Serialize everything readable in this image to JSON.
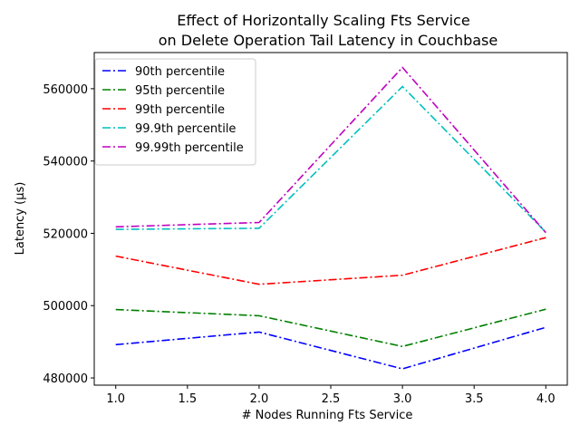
{
  "chart_data": {
    "type": "line",
    "title": [
      "Effect of Horizontally Scaling Fts Service",
      "on Delete Operation Tail Latency in Couchbase"
    ],
    "xlabel": "# Nodes Running Fts Service",
    "ylabel": "Latency (µs)",
    "xlim": [
      0.85,
      4.15
    ],
    "ylim": [
      478000,
      570000
    ],
    "xticks": [
      1.0,
      1.5,
      2.0,
      2.5,
      3.0,
      3.5,
      4.0
    ],
    "xtick_labels": [
      "1.0",
      "1.5",
      "2.0",
      "2.5",
      "3.0",
      "3.5",
      "4.0"
    ],
    "yticks": [
      480000,
      500000,
      520000,
      540000,
      560000
    ],
    "ytick_labels": [
      "480000",
      "500000",
      "520000",
      "540000",
      "560000"
    ],
    "grid": false,
    "legend_position": "upper-left",
    "x": [
      1,
      2,
      3,
      4
    ],
    "series": [
      {
        "name": "90th percentile",
        "color": "#0000ff",
        "values": [
          489200,
          492700,
          482500,
          494000
        ]
      },
      {
        "name": "95th percentile",
        "color": "#008000",
        "values": [
          498900,
          497200,
          488700,
          499000
        ]
      },
      {
        "name": "99th percentile",
        "color": "#ff0000",
        "values": [
          513700,
          505900,
          508400,
          518800
        ]
      },
      {
        "name": "99.9th percentile",
        "color": "#00bfbf",
        "values": [
          521100,
          521400,
          560600,
          520300
        ]
      },
      {
        "name": "99.99th percentile",
        "color": "#bf00bf",
        "values": [
          521800,
          523000,
          565900,
          520200
        ]
      }
    ]
  }
}
